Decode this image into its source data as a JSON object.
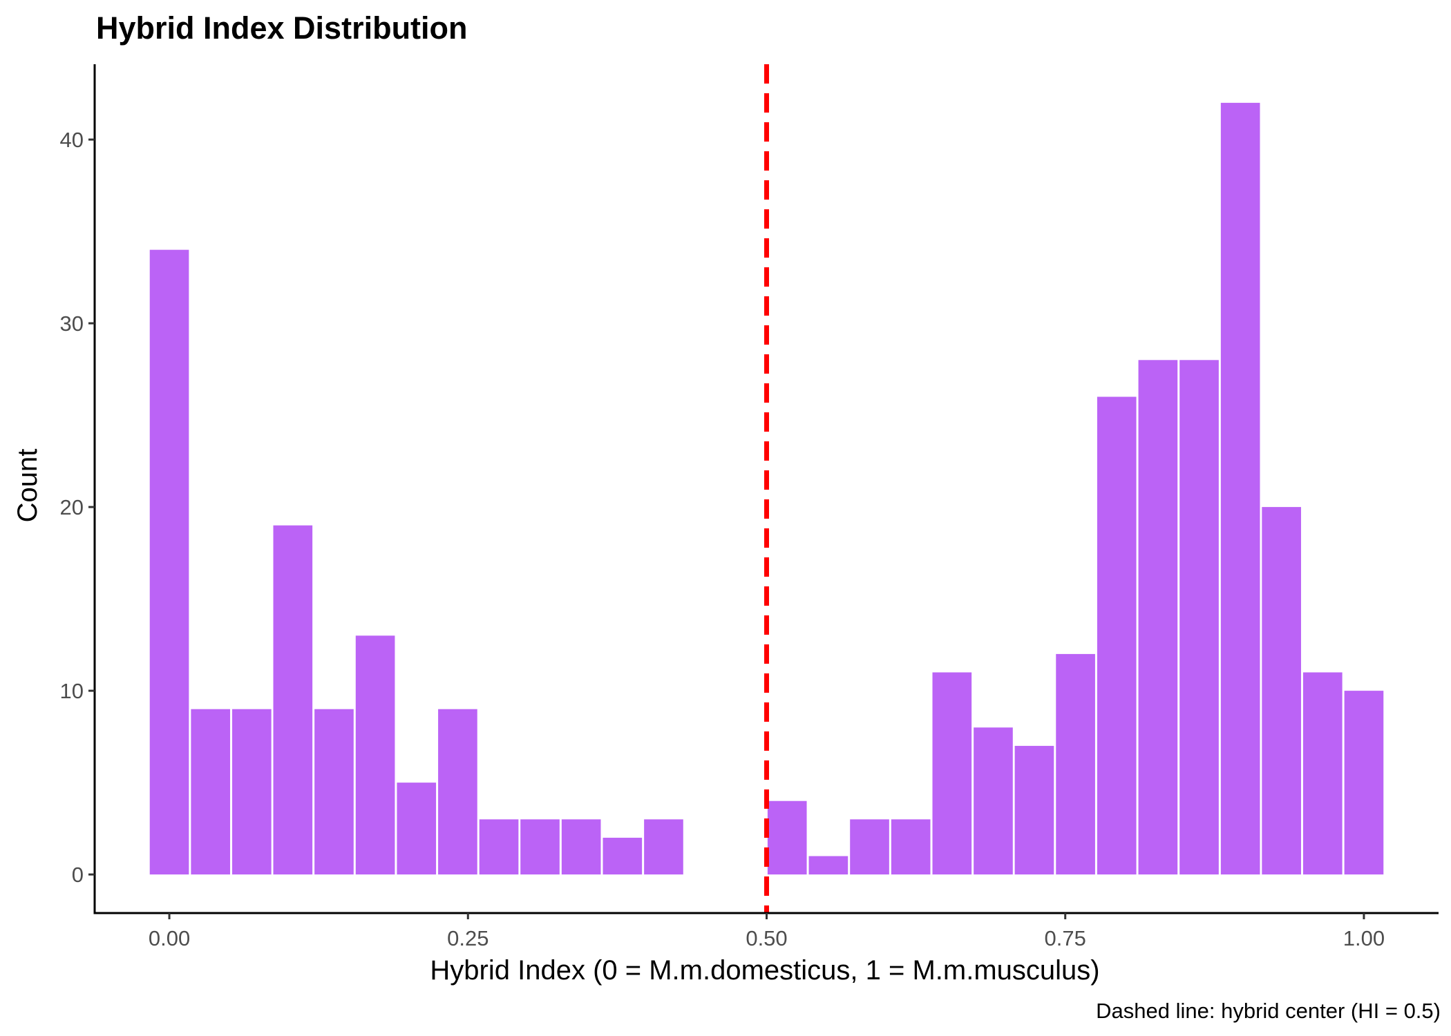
{
  "chart_data": {
    "type": "bar",
    "title": "Hybrid Index Distribution",
    "xlabel": "Hybrid Index (0 = M.m.domesticus, 1 = M.m.musculus)",
    "ylabel": "Count",
    "caption": "Dashed line: hybrid center (HI = 0.5)",
    "xlim": [
      -0.0625,
      1.0625
    ],
    "ylim": [
      -2.1,
      44.1
    ],
    "x_ticks": [
      {
        "value": 0.0,
        "label": "0.00"
      },
      {
        "value": 0.25,
        "label": "0.25"
      },
      {
        "value": 0.5,
        "label": "0.50"
      },
      {
        "value": 0.75,
        "label": "0.75"
      },
      {
        "value": 1.0,
        "label": "1.00"
      }
    ],
    "y_ticks": [
      {
        "value": 0,
        "label": "0"
      },
      {
        "value": 10,
        "label": "10"
      },
      {
        "value": 20,
        "label": "20"
      },
      {
        "value": 30,
        "label": "30"
      },
      {
        "value": 40,
        "label": "40"
      }
    ],
    "bin_width": 0.0345,
    "bin_centers": [
      0.0,
      0.0345,
      0.069,
      0.1034,
      0.1379,
      0.1724,
      0.2069,
      0.2414,
      0.2759,
      0.3103,
      0.3448,
      0.3793,
      0.4138,
      0.4483,
      0.4828,
      0.5172,
      0.5517,
      0.5862,
      0.6207,
      0.6552,
      0.6897,
      0.7241,
      0.7586,
      0.7931,
      0.8276,
      0.8621,
      0.8966,
      0.931,
      0.9655,
      1.0
    ],
    "values": [
      34,
      9,
      9,
      19,
      9,
      13,
      5,
      9,
      3,
      3,
      3,
      2,
      3,
      0,
      0,
      4,
      1,
      3,
      3,
      11,
      8,
      7,
      12,
      26,
      28,
      28,
      42,
      20,
      11,
      10
    ],
    "bar_color": "#BB63F6",
    "reference_line": {
      "x": 0.5,
      "color": "#FF0000",
      "style": "dashed"
    },
    "grid": false,
    "legend": "none"
  }
}
